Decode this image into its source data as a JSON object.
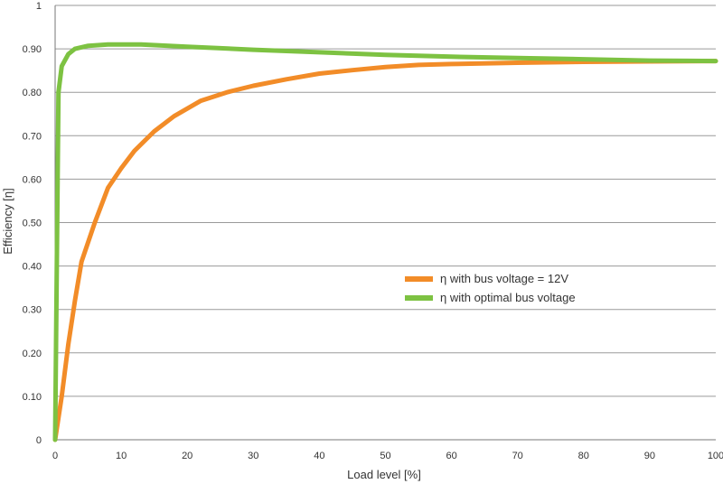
{
  "chart_data": {
    "type": "line",
    "xlabel": "Load level [%]",
    "ylabel": "Efficiency [η]",
    "xlim": [
      0,
      100
    ],
    "ylim": [
      0,
      1
    ],
    "x_ticks": [
      "0",
      "10",
      "20",
      "30",
      "40",
      "50",
      "60",
      "70",
      "80",
      "90",
      "100"
    ],
    "y_ticks": [
      "0",
      "0.10",
      "0.20",
      "0.30",
      "0.40",
      "0.50",
      "0.60",
      "0.70",
      "0.80",
      "0.90",
      "1"
    ],
    "grid": "horizontal",
    "legend_position": "center-right",
    "series": [
      {
        "name": "η with bus voltage = 12V",
        "color": "#F28C28",
        "points": [
          [
            0,
            0
          ],
          [
            1,
            0.1
          ],
          [
            2,
            0.22
          ],
          [
            3,
            0.32
          ],
          [
            4,
            0.41
          ],
          [
            6,
            0.5
          ],
          [
            8,
            0.58
          ],
          [
            10,
            0.625
          ],
          [
            12,
            0.665
          ],
          [
            15,
            0.71
          ],
          [
            18,
            0.745
          ],
          [
            22,
            0.78
          ],
          [
            26,
            0.8
          ],
          [
            30,
            0.815
          ],
          [
            35,
            0.83
          ],
          [
            40,
            0.843
          ],
          [
            45,
            0.851
          ],
          [
            50,
            0.858
          ],
          [
            55,
            0.863
          ],
          [
            60,
            0.865
          ],
          [
            70,
            0.868
          ],
          [
            80,
            0.87
          ],
          [
            90,
            0.871
          ],
          [
            100,
            0.872
          ]
        ]
      },
      {
        "name": "η with optimal bus voltage",
        "color": "#7DC242",
        "points": [
          [
            0,
            0
          ],
          [
            0.5,
            0.8
          ],
          [
            1,
            0.86
          ],
          [
            2,
            0.888
          ],
          [
            3,
            0.9
          ],
          [
            5,
            0.907
          ],
          [
            8,
            0.91
          ],
          [
            13,
            0.91
          ],
          [
            20,
            0.905
          ],
          [
            30,
            0.898
          ],
          [
            40,
            0.892
          ],
          [
            50,
            0.886
          ],
          [
            60,
            0.882
          ],
          [
            70,
            0.879
          ],
          [
            80,
            0.876
          ],
          [
            90,
            0.873
          ],
          [
            100,
            0.872
          ]
        ]
      }
    ]
  }
}
